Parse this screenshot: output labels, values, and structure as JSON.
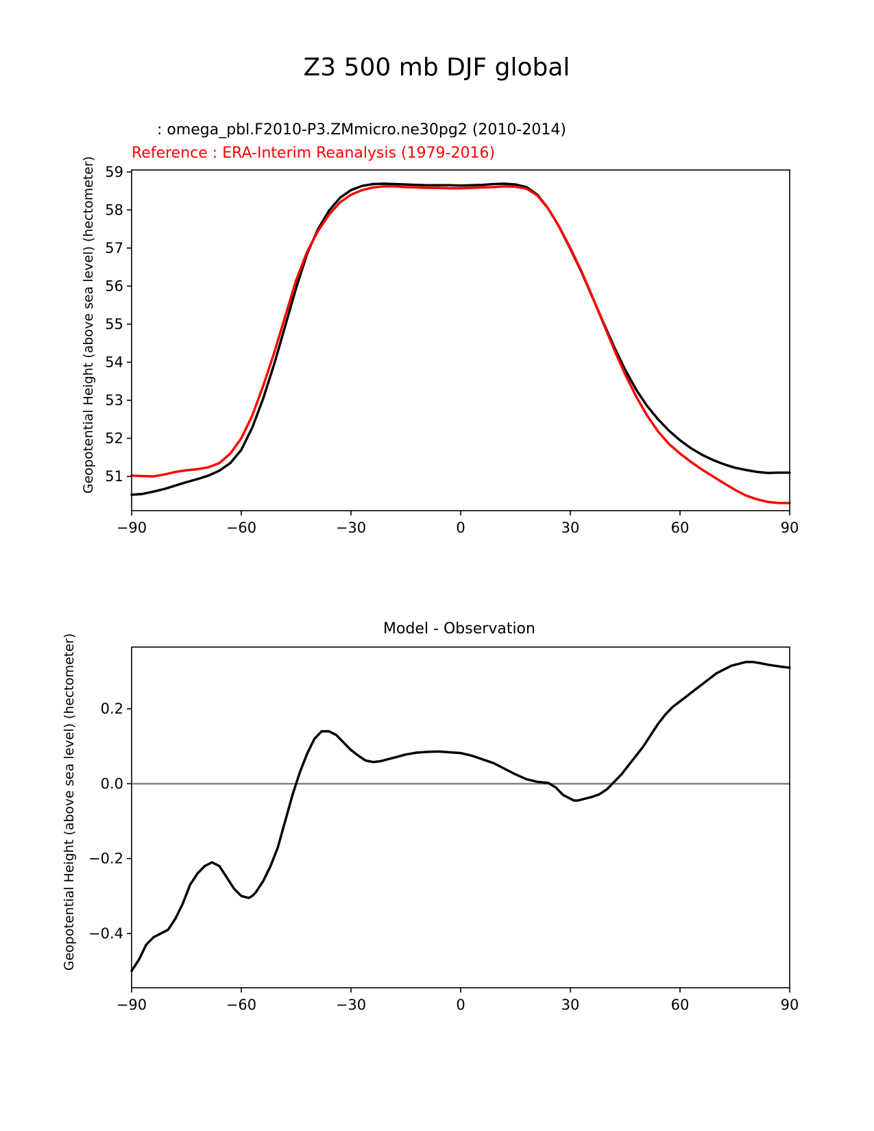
{
  "figure": {
    "title": "Z3 500 mb DJF global",
    "line_color_model": "#000000",
    "line_color_reference": "#ff0000",
    "zero_line_color": "#808080"
  },
  "chart_data": [
    {
      "type": "line",
      "title_lines": [
        {
          "text": "   : omega_pbl.F2010-P3.ZMmicro.ne30pg2 (2010-2014)",
          "color": "#000000"
        },
        {
          "text": "Reference : ERA-Interim Reanalysis (1979-2016)",
          "color": "#ff0000"
        }
      ],
      "xlabel": "",
      "ylabel": "Geopotential Height (above sea level) (hectometer)",
      "xlim": [
        -90,
        90
      ],
      "ylim": [
        50.1,
        59.05
      ],
      "xticks": [
        -90,
        -60,
        -30,
        0,
        30,
        60,
        90
      ],
      "xtick_labels": [
        "−90",
        "−60",
        "−30",
        "0",
        "30",
        "60",
        "90"
      ],
      "yticks": [
        51,
        52,
        53,
        54,
        55,
        56,
        57,
        58,
        59
      ],
      "ytick_labels": [
        "51",
        "52",
        "53",
        "54",
        "55",
        "56",
        "57",
        "58",
        "59"
      ],
      "series": [
        {
          "name": "omega_pbl.F2010-P3.ZMmicro.ne30pg2",
          "color": "#000000",
          "x": [
            -90,
            -87,
            -84,
            -81,
            -78,
            -75,
            -72,
            -69,
            -66,
            -63,
            -60,
            -57,
            -54,
            -51,
            -48,
            -45,
            -42,
            -39,
            -36,
            -33,
            -30,
            -27,
            -24,
            -21,
            -18,
            -15,
            -12,
            -9,
            -6,
            -3,
            0,
            3,
            6,
            9,
            12,
            15,
            18,
            21,
            24,
            27,
            30,
            33,
            36,
            39,
            42,
            45,
            48,
            51,
            54,
            57,
            60,
            63,
            66,
            69,
            72,
            75,
            78,
            81,
            84,
            87,
            90
          ],
          "values": [
            50.52,
            50.54,
            50.6,
            50.67,
            50.76,
            50.85,
            50.93,
            51.02,
            51.15,
            51.35,
            51.7,
            52.28,
            53.05,
            53.95,
            54.95,
            55.95,
            56.85,
            57.5,
            57.98,
            58.32,
            58.52,
            58.63,
            58.68,
            58.69,
            58.68,
            58.67,
            58.66,
            58.65,
            58.65,
            58.65,
            58.64,
            58.65,
            58.66,
            58.68,
            58.69,
            58.67,
            58.6,
            58.4,
            58.03,
            57.55,
            56.98,
            56.38,
            55.72,
            55.05,
            54.4,
            53.8,
            53.28,
            52.85,
            52.5,
            52.2,
            51.95,
            51.74,
            51.57,
            51.43,
            51.32,
            51.23,
            51.17,
            51.12,
            51.09,
            51.1,
            51.1
          ]
        },
        {
          "name": "Reference : ERA-Interim Reanalysis (1979-2016)",
          "color": "#ff0000",
          "x": [
            -90,
            -87,
            -84,
            -81,
            -78,
            -75,
            -72,
            -69,
            -66,
            -63,
            -60,
            -57,
            -54,
            -51,
            -48,
            -45,
            -42,
            -39,
            -36,
            -33,
            -30,
            -27,
            -24,
            -21,
            -18,
            -15,
            -12,
            -9,
            -6,
            -3,
            0,
            3,
            6,
            9,
            12,
            15,
            18,
            21,
            24,
            27,
            30,
            33,
            36,
            39,
            42,
            45,
            48,
            51,
            54,
            57,
            60,
            63,
            66,
            69,
            72,
            75,
            78,
            81,
            84,
            87,
            90
          ],
          "values": [
            51.02,
            51.01,
            51.0,
            51.05,
            51.12,
            51.16,
            51.19,
            51.24,
            51.35,
            51.6,
            52.0,
            52.6,
            53.38,
            54.25,
            55.2,
            56.15,
            56.9,
            57.45,
            57.88,
            58.2,
            58.4,
            58.52,
            58.59,
            58.62,
            58.62,
            58.6,
            58.59,
            58.58,
            58.58,
            58.57,
            58.57,
            58.58,
            58.59,
            58.6,
            58.62,
            58.61,
            58.56,
            58.38,
            58.03,
            57.55,
            57.0,
            56.4,
            55.73,
            55.03,
            54.33,
            53.68,
            53.1,
            52.6,
            52.18,
            51.85,
            51.6,
            51.38,
            51.18,
            51.0,
            50.82,
            50.65,
            50.5,
            50.4,
            50.33,
            50.3,
            50.3
          ]
        }
      ]
    },
    {
      "type": "line",
      "title": "Model - Observation",
      "xlabel": "",
      "ylabel": "Geopotential Height (above sea level) (hectometer)",
      "xlim": [
        -90,
        90
      ],
      "ylim": [
        -0.545,
        0.365
      ],
      "xticks": [
        -90,
        -60,
        -30,
        0,
        30,
        60,
        90
      ],
      "xtick_labels": [
        "−90",
        "−60",
        "−30",
        "0",
        "30",
        "60",
        "90"
      ],
      "yticks": [
        -0.4,
        -0.2,
        0.0,
        0.2
      ],
      "ytick_labels": [
        "−0.4",
        "−0.2",
        "0.0",
        "0.2"
      ],
      "hline": {
        "y": 0.0,
        "color": "#808080"
      },
      "series": [
        {
          "name": "Model - Observation",
          "color": "#000000",
          "x": [
            -90,
            -88,
            -86,
            -84,
            -82,
            -80,
            -78,
            -76,
            -74,
            -72,
            -70,
            -68,
            -67,
            -66,
            -64,
            -62,
            -60,
            -58,
            -57,
            -56,
            -54,
            -52,
            -50,
            -48,
            -46,
            -44,
            -42,
            -40,
            -38,
            -36,
            -34,
            -32,
            -30,
            -28,
            -26,
            -24,
            -22,
            -20,
            -18,
            -15,
            -12,
            -9,
            -6,
            -3,
            0,
            3,
            6,
            9,
            12,
            15,
            18,
            21,
            24,
            26,
            28,
            30,
            31,
            32,
            34,
            36,
            38,
            40,
            42,
            44,
            46,
            48,
            50,
            52,
            54,
            56,
            58,
            60,
            62,
            64,
            66,
            68,
            70,
            72,
            74,
            76,
            78,
            80,
            82,
            84,
            86,
            88,
            90
          ],
          "values": [
            -0.5,
            -0.47,
            -0.43,
            -0.41,
            -0.4,
            -0.39,
            -0.36,
            -0.32,
            -0.27,
            -0.24,
            -0.22,
            -0.21,
            -0.215,
            -0.22,
            -0.25,
            -0.28,
            -0.3,
            -0.305,
            -0.3,
            -0.29,
            -0.26,
            -0.22,
            -0.17,
            -0.1,
            -0.03,
            0.03,
            0.08,
            0.12,
            0.14,
            0.14,
            0.13,
            0.11,
            0.09,
            0.075,
            0.062,
            0.058,
            0.06,
            0.065,
            0.07,
            0.078,
            0.083,
            0.085,
            0.086,
            0.084,
            0.082,
            0.075,
            0.065,
            0.055,
            0.04,
            0.025,
            0.012,
            0.005,
            0.002,
            -0.01,
            -0.03,
            -0.04,
            -0.045,
            -0.045,
            -0.04,
            -0.035,
            -0.028,
            -0.015,
            0.005,
            0.025,
            0.05,
            0.075,
            0.1,
            0.13,
            0.16,
            0.185,
            0.205,
            0.22,
            0.235,
            0.25,
            0.265,
            0.28,
            0.295,
            0.305,
            0.315,
            0.32,
            0.325,
            0.325,
            0.322,
            0.318,
            0.315,
            0.312,
            0.31
          ]
        }
      ]
    }
  ]
}
